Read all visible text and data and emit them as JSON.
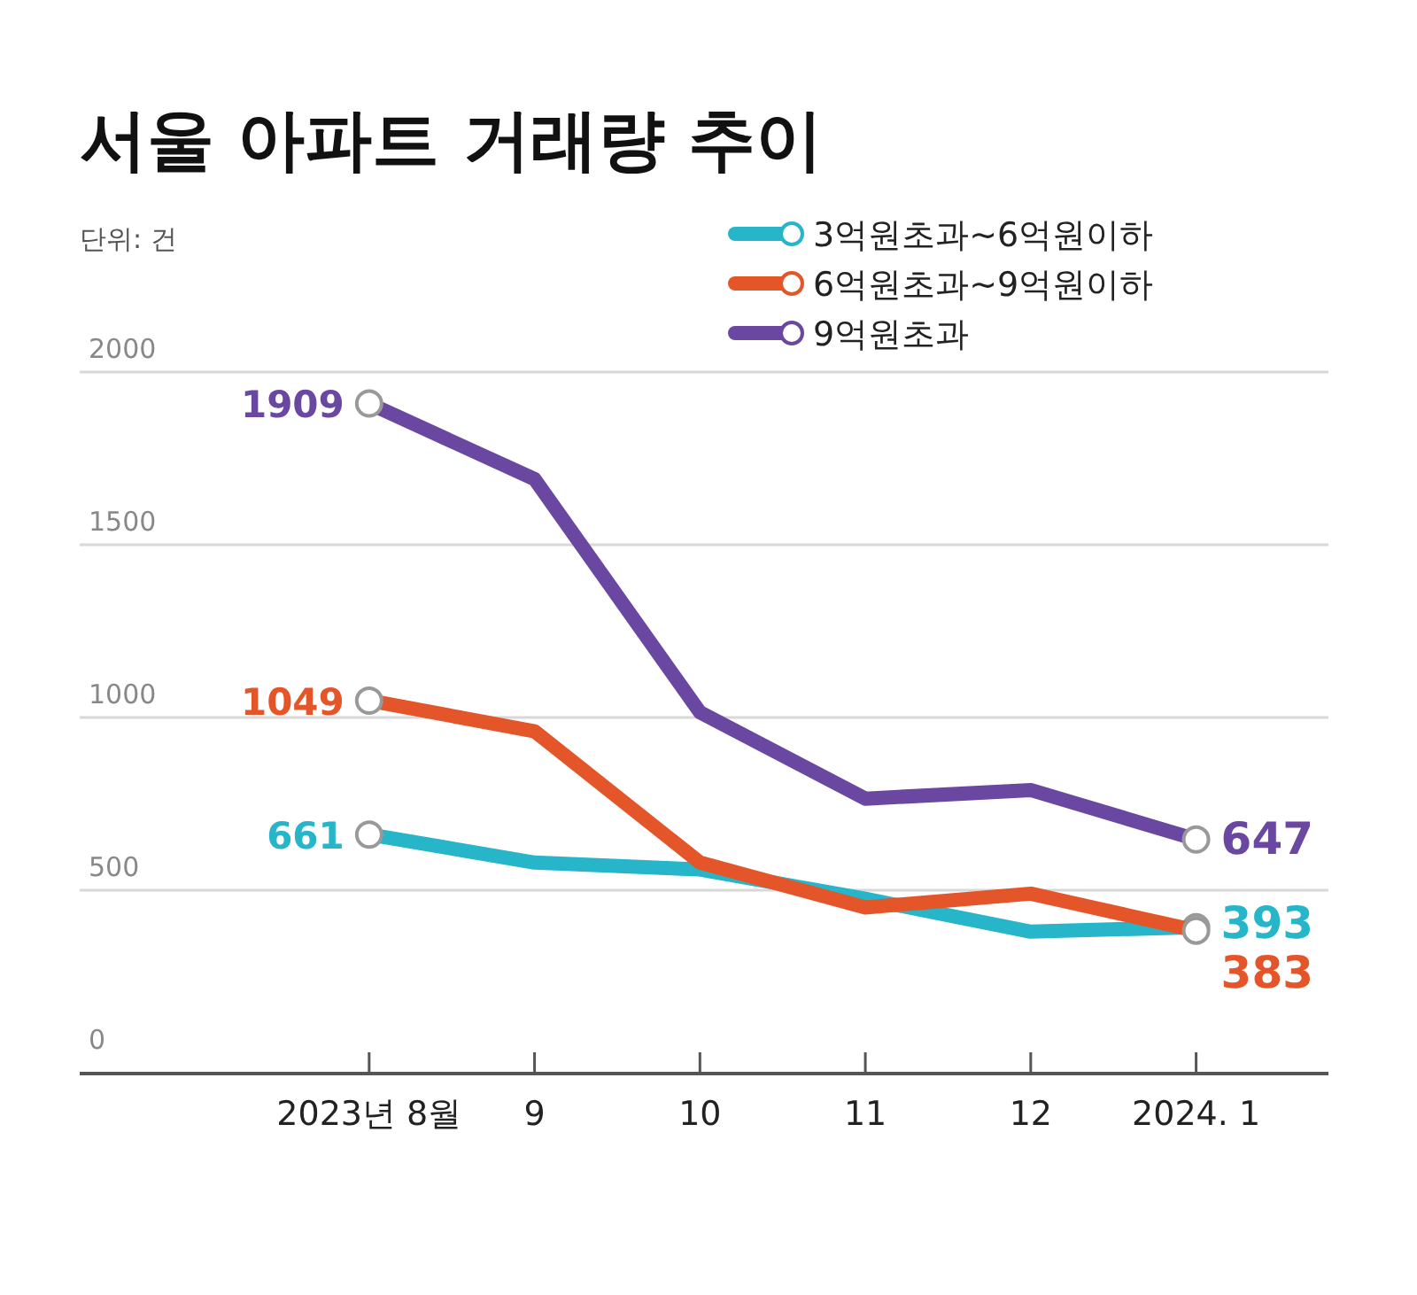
{
  "chart_data": {
    "type": "line",
    "title": "서울 아파트 거래량 추이",
    "annotations": [
      "단위: 건"
    ],
    "categories": [
      "2023년 8월",
      "9",
      "10",
      "11",
      "12",
      "2024. 1"
    ],
    "ylim": [
      0,
      2000
    ],
    "yticks": [
      0,
      500,
      1000,
      1500,
      2000
    ],
    "grid": "y",
    "legend": "top right",
    "line_style": "solid",
    "series": [
      {
        "name": "3억원초과~6억원이하",
        "color": "#27b5c9",
        "values": [
          661,
          580,
          560,
          475,
          380,
          393
        ],
        "value_labels": [
          "661",
          null,
          null,
          null,
          null,
          "393"
        ]
      },
      {
        "name": "6억원초과~9억원이하",
        "color": "#e4552a",
        "values": [
          1049,
          960,
          580,
          450,
          490,
          383
        ],
        "value_labels": [
          "1049",
          null,
          null,
          null,
          null,
          "383"
        ]
      },
      {
        "name": "9억원초과",
        "color": "#6a47a0",
        "values": [
          1909,
          1690,
          1015,
          765,
          790,
          647
        ],
        "value_labels": [
          "1909",
          null,
          null,
          null,
          null,
          "647"
        ]
      }
    ]
  }
}
